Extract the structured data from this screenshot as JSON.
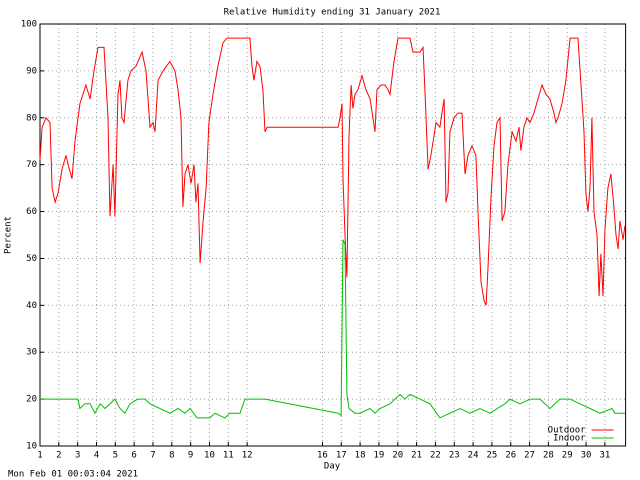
{
  "chart_data": {
    "type": "line",
    "title": "Relative Humidity ending 31 January 2021",
    "x_label": "Day",
    "y_label": "Percent",
    "timestamp": "Mon Feb 01 00:03:04 2021",
    "xlim": [
      1,
      32.1
    ],
    "ylim": [
      10,
      100
    ],
    "xticks": [
      1,
      2,
      3,
      4,
      5,
      6,
      7,
      8,
      9,
      10,
      11,
      12,
      16,
      17,
      18,
      19,
      20,
      21,
      22,
      23,
      24,
      25,
      26,
      27,
      28,
      29,
      30,
      31
    ],
    "yticks": [
      10,
      20,
      30,
      40,
      50,
      60,
      70,
      80,
      90,
      100
    ],
    "grid": true,
    "legend": "bottom-right",
    "series": [
      {
        "name": "Outdoor",
        "color": "#ff0000",
        "x": [
          1.0,
          1.11,
          1.32,
          1.53,
          1.64,
          1.8,
          1.96,
          2.17,
          2.38,
          2.49,
          2.7,
          2.86,
          3.12,
          3.44,
          3.66,
          3.87,
          4.08,
          4.4,
          4.61,
          4.72,
          4.88,
          4.98,
          5.14,
          5.25,
          5.35,
          5.46,
          5.67,
          5.83,
          6.1,
          6.42,
          6.63,
          6.84,
          7.0,
          7.11,
          7.27,
          7.53,
          7.9,
          8.17,
          8.33,
          8.49,
          8.59,
          8.7,
          8.86,
          9.02,
          9.18,
          9.28,
          9.39,
          9.5,
          9.66,
          9.82,
          9.97,
          10.19,
          10.45,
          10.72,
          10.93,
          12.15,
          12.26,
          12.36,
          12.52,
          12.68,
          12.84,
          12.95,
          13.06,
          16.83,
          16.93,
          17.04,
          17.09,
          17.2,
          17.3,
          17.41,
          17.52,
          17.62,
          17.73,
          17.89,
          18.1,
          18.31,
          18.53,
          18.68,
          18.79,
          18.9,
          19.11,
          19.32,
          19.48,
          19.59,
          19.8,
          20.01,
          20.65,
          20.81,
          21.18,
          21.34,
          21.45,
          21.61,
          21.76,
          21.92,
          22.03,
          22.24,
          22.46,
          22.56,
          22.67,
          22.77,
          22.99,
          23.2,
          23.41,
          23.57,
          23.73,
          23.94,
          24.15,
          24.26,
          24.42,
          24.58,
          24.69,
          24.79,
          24.95,
          25.11,
          25.27,
          25.43,
          25.54,
          25.69,
          25.85,
          26.07,
          26.28,
          26.44,
          26.54,
          26.7,
          26.86,
          27.02,
          27.23,
          27.45,
          27.66,
          27.87,
          28.08,
          28.3,
          28.4,
          28.51,
          28.72,
          28.93,
          29.15,
          29.57,
          29.73,
          29.89,
          29.99,
          30.1,
          30.21,
          30.31,
          30.42,
          30.58,
          30.69,
          30.79,
          30.9,
          31.0,
          31.16,
          31.32,
          31.48,
          31.59,
          31.7,
          31.8,
          31.96,
          32.07
        ],
        "values": [
          71,
          78,
          80,
          79,
          65,
          62,
          64,
          69,
          72,
          70,
          67,
          75,
          83,
          87,
          84,
          90,
          95,
          95,
          80,
          59,
          70,
          59,
          85,
          88,
          80,
          79,
          88,
          90,
          91,
          94,
          90,
          78,
          79,
          77,
          88,
          90,
          92,
          90,
          86,
          80,
          61,
          68,
          70,
          66,
          70,
          62,
          66,
          49,
          58,
          65,
          79,
          85,
          91,
          96,
          97,
          97,
          91,
          88,
          92,
          91,
          86,
          77,
          78,
          78,
          80,
          83,
          67,
          55,
          46,
          76,
          87,
          82,
          85,
          86,
          89,
          86,
          84,
          80,
          77,
          86,
          87,
          87,
          86,
          85,
          92,
          97,
          97,
          94,
          94,
          95,
          85,
          69,
          72,
          76,
          79,
          78,
          84,
          62,
          64,
          77,
          80,
          81,
          81,
          68,
          72,
          74,
          72,
          60,
          45,
          41,
          40,
          48,
          63,
          74,
          79,
          80,
          58,
          60,
          70,
          77,
          75,
          78,
          73,
          78,
          80,
          79,
          81,
          84,
          87,
          85,
          84,
          81,
          79,
          80,
          83,
          88,
          97,
          97,
          87,
          77,
          64,
          60,
          65,
          80,
          60,
          55,
          42,
          51,
          42,
          56,
          65,
          68,
          61,
          55,
          52,
          58,
          54,
          57
        ]
      },
      {
        "name": "Indoor",
        "color": "#00c000",
        "x": [
          1.0,
          3.02,
          3.12,
          3.39,
          3.66,
          3.92,
          4.19,
          4.45,
          4.72,
          4.98,
          5.25,
          5.51,
          5.78,
          6.2,
          6.58,
          6.84,
          7.37,
          7.9,
          8.33,
          8.7,
          8.97,
          9.34,
          10.03,
          10.29,
          10.82,
          11.08,
          11.62,
          11.88,
          12.95,
          16.83,
          16.99,
          17.09,
          17.2,
          17.3,
          17.41,
          17.73,
          17.99,
          18.53,
          18.79,
          19.06,
          19.59,
          19.85,
          20.12,
          20.38,
          20.65,
          21.18,
          21.71,
          22.24,
          22.77,
          23.3,
          23.83,
          24.36,
          24.89,
          25.69,
          25.96,
          26.49,
          27.02,
          27.55,
          28.08,
          28.61,
          29.15,
          29.68,
          30.21,
          30.74,
          31.37,
          31.53,
          32.07
        ],
        "values": [
          20,
          20,
          18,
          19,
          19,
          17,
          19,
          18,
          19,
          20,
          18,
          17,
          19,
          20,
          20,
          19,
          18,
          17,
          18,
          17,
          18,
          16,
          16,
          17,
          16,
          17,
          17,
          20,
          20,
          17,
          16.5,
          54,
          53,
          21,
          18,
          17,
          17,
          18,
          17,
          18,
          19,
          20,
          21,
          20,
          21,
          20,
          19,
          16,
          17,
          18,
          17,
          18,
          17,
          19,
          20,
          19,
          20,
          20,
          18,
          20,
          20,
          19,
          18,
          17,
          18,
          17,
          17
        ]
      }
    ]
  }
}
